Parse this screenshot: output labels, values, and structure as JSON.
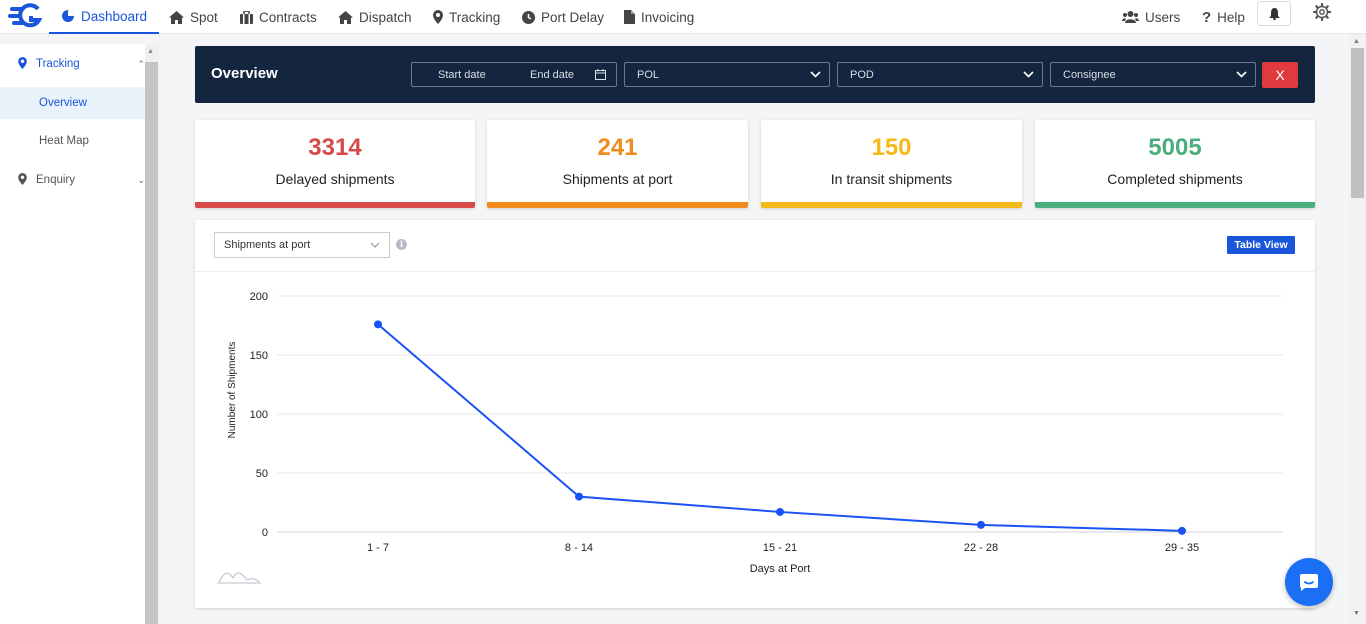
{
  "nav": {
    "items": [
      {
        "label": "Dashboard",
        "icon": "pie-chart-icon"
      },
      {
        "label": "Spot",
        "icon": "house-icon"
      },
      {
        "label": "Contracts",
        "icon": "briefcase-icon"
      },
      {
        "label": "Dispatch",
        "icon": "house-icon"
      },
      {
        "label": "Tracking",
        "icon": "map-pin-icon"
      },
      {
        "label": "Port Delay",
        "icon": "clock-icon"
      },
      {
        "label": "Invoicing",
        "icon": "document-icon"
      }
    ],
    "users_label": "Users",
    "help_label": "Help"
  },
  "sidebar": {
    "tracking": "Tracking",
    "overview": "Overview",
    "heat_map": "Heat Map",
    "enquiry": "Enquiry"
  },
  "overview": {
    "title": "Overview",
    "start_date": "Start date",
    "end_date": "End date",
    "pol": "POL",
    "pod": "POD",
    "consignee": "Consignee",
    "clear": "X"
  },
  "cards": [
    {
      "value": "3314",
      "label": "Delayed shipments",
      "color": "#d84a4a"
    },
    {
      "value": "241",
      "label": "Shipments at port",
      "color": "#f08c1e"
    },
    {
      "value": "150",
      "label": "In transit shipments",
      "color": "#f5b918"
    },
    {
      "value": "5005",
      "label": "Completed shipments",
      "color": "#4cae7c"
    }
  ],
  "panel": {
    "select_value": "Shipments at port",
    "table_view": "Table View"
  },
  "colors": {
    "accent": "#1a56db",
    "line": "#1a53f5",
    "navy": "#142540"
  },
  "chart_data": {
    "type": "line",
    "categories": [
      "1 - 7",
      "8 - 14",
      "15 - 21",
      "22 - 28",
      "29 - 35"
    ],
    "values": [
      176,
      30,
      17,
      6,
      1
    ],
    "xlabel": "Days at Port",
    "ylabel": "Number of Shipments",
    "ylim": [
      0,
      200
    ],
    "yticks": [
      0,
      50,
      100,
      150,
      200
    ],
    "grid": true,
    "legend": "none"
  }
}
